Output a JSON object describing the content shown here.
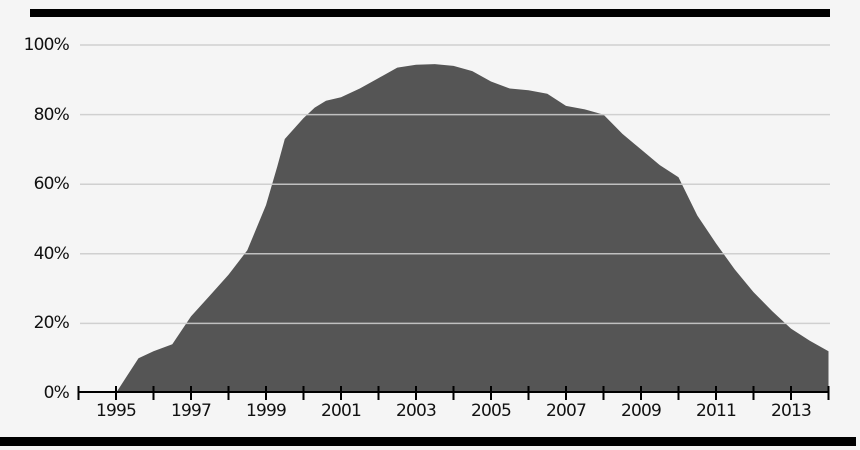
{
  "chart_data": {
    "type": "area",
    "title": "",
    "legend": "none",
    "grid": true,
    "series": [
      {
        "name": "share-percent",
        "points": [
          [
            1994,
            0
          ],
          [
            1995,
            0
          ],
          [
            1995.3,
            5
          ],
          [
            1995.6,
            10
          ],
          [
            1996,
            12
          ],
          [
            1996.5,
            14
          ],
          [
            1997,
            22
          ],
          [
            1997.5,
            28
          ],
          [
            1998,
            34
          ],
          [
            1998.5,
            41
          ],
          [
            1999,
            54
          ],
          [
            1999.3,
            65
          ],
          [
            1999.5,
            73
          ],
          [
            2000,
            79
          ],
          [
            2000.3,
            82
          ],
          [
            2000.6,
            84
          ],
          [
            2001,
            85
          ],
          [
            2001.5,
            87.5
          ],
          [
            2002,
            90.5
          ],
          [
            2002.5,
            93.5
          ],
          [
            2003,
            94.3
          ],
          [
            2003.5,
            94.5
          ],
          [
            2004,
            94
          ],
          [
            2004.5,
            92.5
          ],
          [
            2005,
            89.5
          ],
          [
            2005.5,
            87.5
          ],
          [
            2006,
            87
          ],
          [
            2006.5,
            86
          ],
          [
            2007,
            82.5
          ],
          [
            2007.5,
            81.5
          ],
          [
            2008,
            80
          ],
          [
            2008.5,
            74.5
          ],
          [
            2009,
            70
          ],
          [
            2009.5,
            65.5
          ],
          [
            2010,
            62
          ],
          [
            2010.5,
            51
          ],
          [
            2011,
            43
          ],
          [
            2011.5,
            35.5
          ],
          [
            2012,
            29
          ],
          [
            2012.5,
            23.5
          ],
          [
            2013,
            18.5
          ],
          [
            2013.5,
            15
          ],
          [
            2014,
            12
          ]
        ]
      }
    ],
    "x": {
      "min": 1994,
      "max": 2014,
      "tick_step_years": 1,
      "label_years": [
        "1995",
        "1997",
        "1999",
        "2001",
        "2003",
        "2005",
        "2007",
        "2009",
        "2011",
        "2013"
      ]
    },
    "y": {
      "min": 0,
      "max": 100,
      "ticks": [
        0,
        20,
        40,
        60,
        80,
        100
      ],
      "tick_labels": [
        "0%",
        "20%",
        "40%",
        "60%",
        "80%",
        "100%"
      ]
    },
    "colors": {
      "background": "#f5f5f5",
      "area": "#555555",
      "axis": "#000000",
      "gridline": "#cccccc",
      "label": "#111111"
    }
  }
}
